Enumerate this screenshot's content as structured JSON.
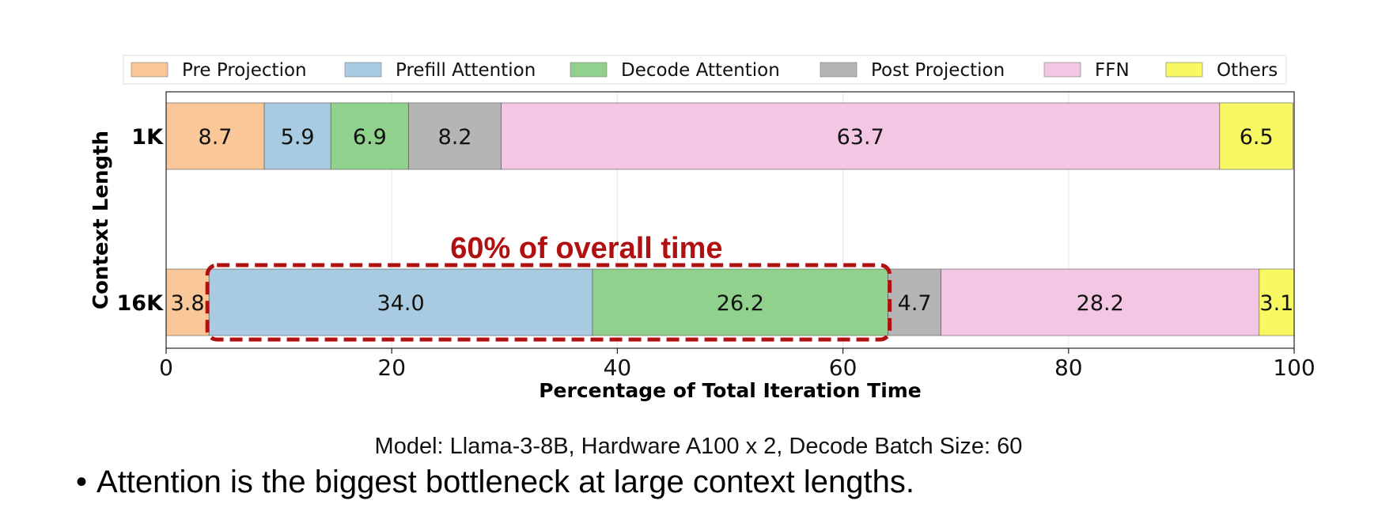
{
  "chart_data": {
    "type": "bar",
    "orientation": "horizontal",
    "stacked": true,
    "categories": [
      "1K",
      "16K"
    ],
    "series": [
      {
        "name": "Pre Projection",
        "color": "#fac898",
        "values": [
          8.7,
          3.8
        ]
      },
      {
        "name": "Prefill Attention",
        "color": "#a8cbe1",
        "values": [
          5.9,
          34.0
        ]
      },
      {
        "name": "Decode Attention",
        "color": "#8fd18d",
        "values": [
          6.9,
          26.2
        ]
      },
      {
        "name": "Post Projection",
        "color": "#b5b5b5",
        "values": [
          8.2,
          4.7
        ]
      },
      {
        "name": "FFN",
        "color": "#f3c7e4",
        "values": [
          63.7,
          28.2
        ]
      },
      {
        "name": "Others",
        "color": "#f8f863",
        "values": [
          6.5,
          3.1
        ]
      }
    ],
    "xlabel": "Percentage of Total Iteration Time",
    "ylabel": "Context Length",
    "xlim": [
      0,
      100
    ],
    "xticks": [
      0,
      20,
      40,
      60,
      80,
      100
    ],
    "grid": true,
    "legend": "top",
    "annotation": {
      "text": "60% of overall time",
      "color": "#b01010",
      "category": "16K",
      "covers_series": [
        "Prefill Attention",
        "Decode Attention"
      ]
    }
  },
  "caption": "Model: Llama-3-8B, Hardware A100 x 2, Decode Batch Size: 60",
  "bullet": {
    "symbol": "•",
    "text": "Attention is the biggest bottleneck at large context lengths."
  }
}
